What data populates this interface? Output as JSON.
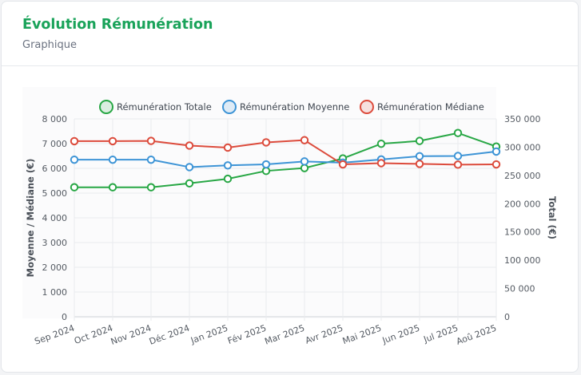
{
  "header": {
    "title": "Évolution Rémunération",
    "subtitle": "Graphique"
  },
  "colors": {
    "totale": "#28a745",
    "moyenne": "#3d94d6",
    "mediane": "#dc4b3c",
    "title": "#1aa35a"
  },
  "chart_data": {
    "type": "line",
    "title": "",
    "categories": [
      "Sep 2024",
      "Oct 2024",
      "Nov 2024",
      "Déc 2024",
      "Jan 2025",
      "Fév 2025",
      "Mar 2025",
      "Avr 2025",
      "Mai 2025",
      "Jun 2025",
      "Jul 2025",
      "Aoû 2025"
    ],
    "series": [
      {
        "name": "Rémunération Totale",
        "axis": "right",
        "color": "#28a745",
        "values": [
          229000,
          229000,
          229000,
          236000,
          244000,
          258000,
          263000,
          280000,
          306000,
          311000,
          325000,
          301000
        ]
      },
      {
        "name": "Rémunération Moyenne",
        "axis": "left",
        "color": "#3d94d6",
        "values": [
          6350,
          6350,
          6350,
          6050,
          6120,
          6160,
          6280,
          6230,
          6360,
          6490,
          6500,
          6680
        ]
      },
      {
        "name": "Rémunération Médiane",
        "axis": "left",
        "color": "#dc4b3c",
        "values": [
          7100,
          7100,
          7110,
          6920,
          6840,
          7050,
          7140,
          6160,
          6210,
          6180,
          6150,
          6160
        ]
      }
    ],
    "y_left": {
      "label": "Moyenne / Médiane (€)",
      "ylim": [
        0,
        8000
      ],
      "ticks": [
        "0",
        "1 000",
        "2 000",
        "3 000",
        "4 000",
        "5 000",
        "6 000",
        "7 000",
        "8 000"
      ]
    },
    "y_right": {
      "label": "Total (€)",
      "ylim": [
        0,
        350000
      ],
      "ticks": [
        "0",
        "50 000",
        "100 000",
        "150 000",
        "200 000",
        "250 000",
        "300 000",
        "350 000"
      ]
    },
    "grid": true,
    "legend": "top"
  }
}
